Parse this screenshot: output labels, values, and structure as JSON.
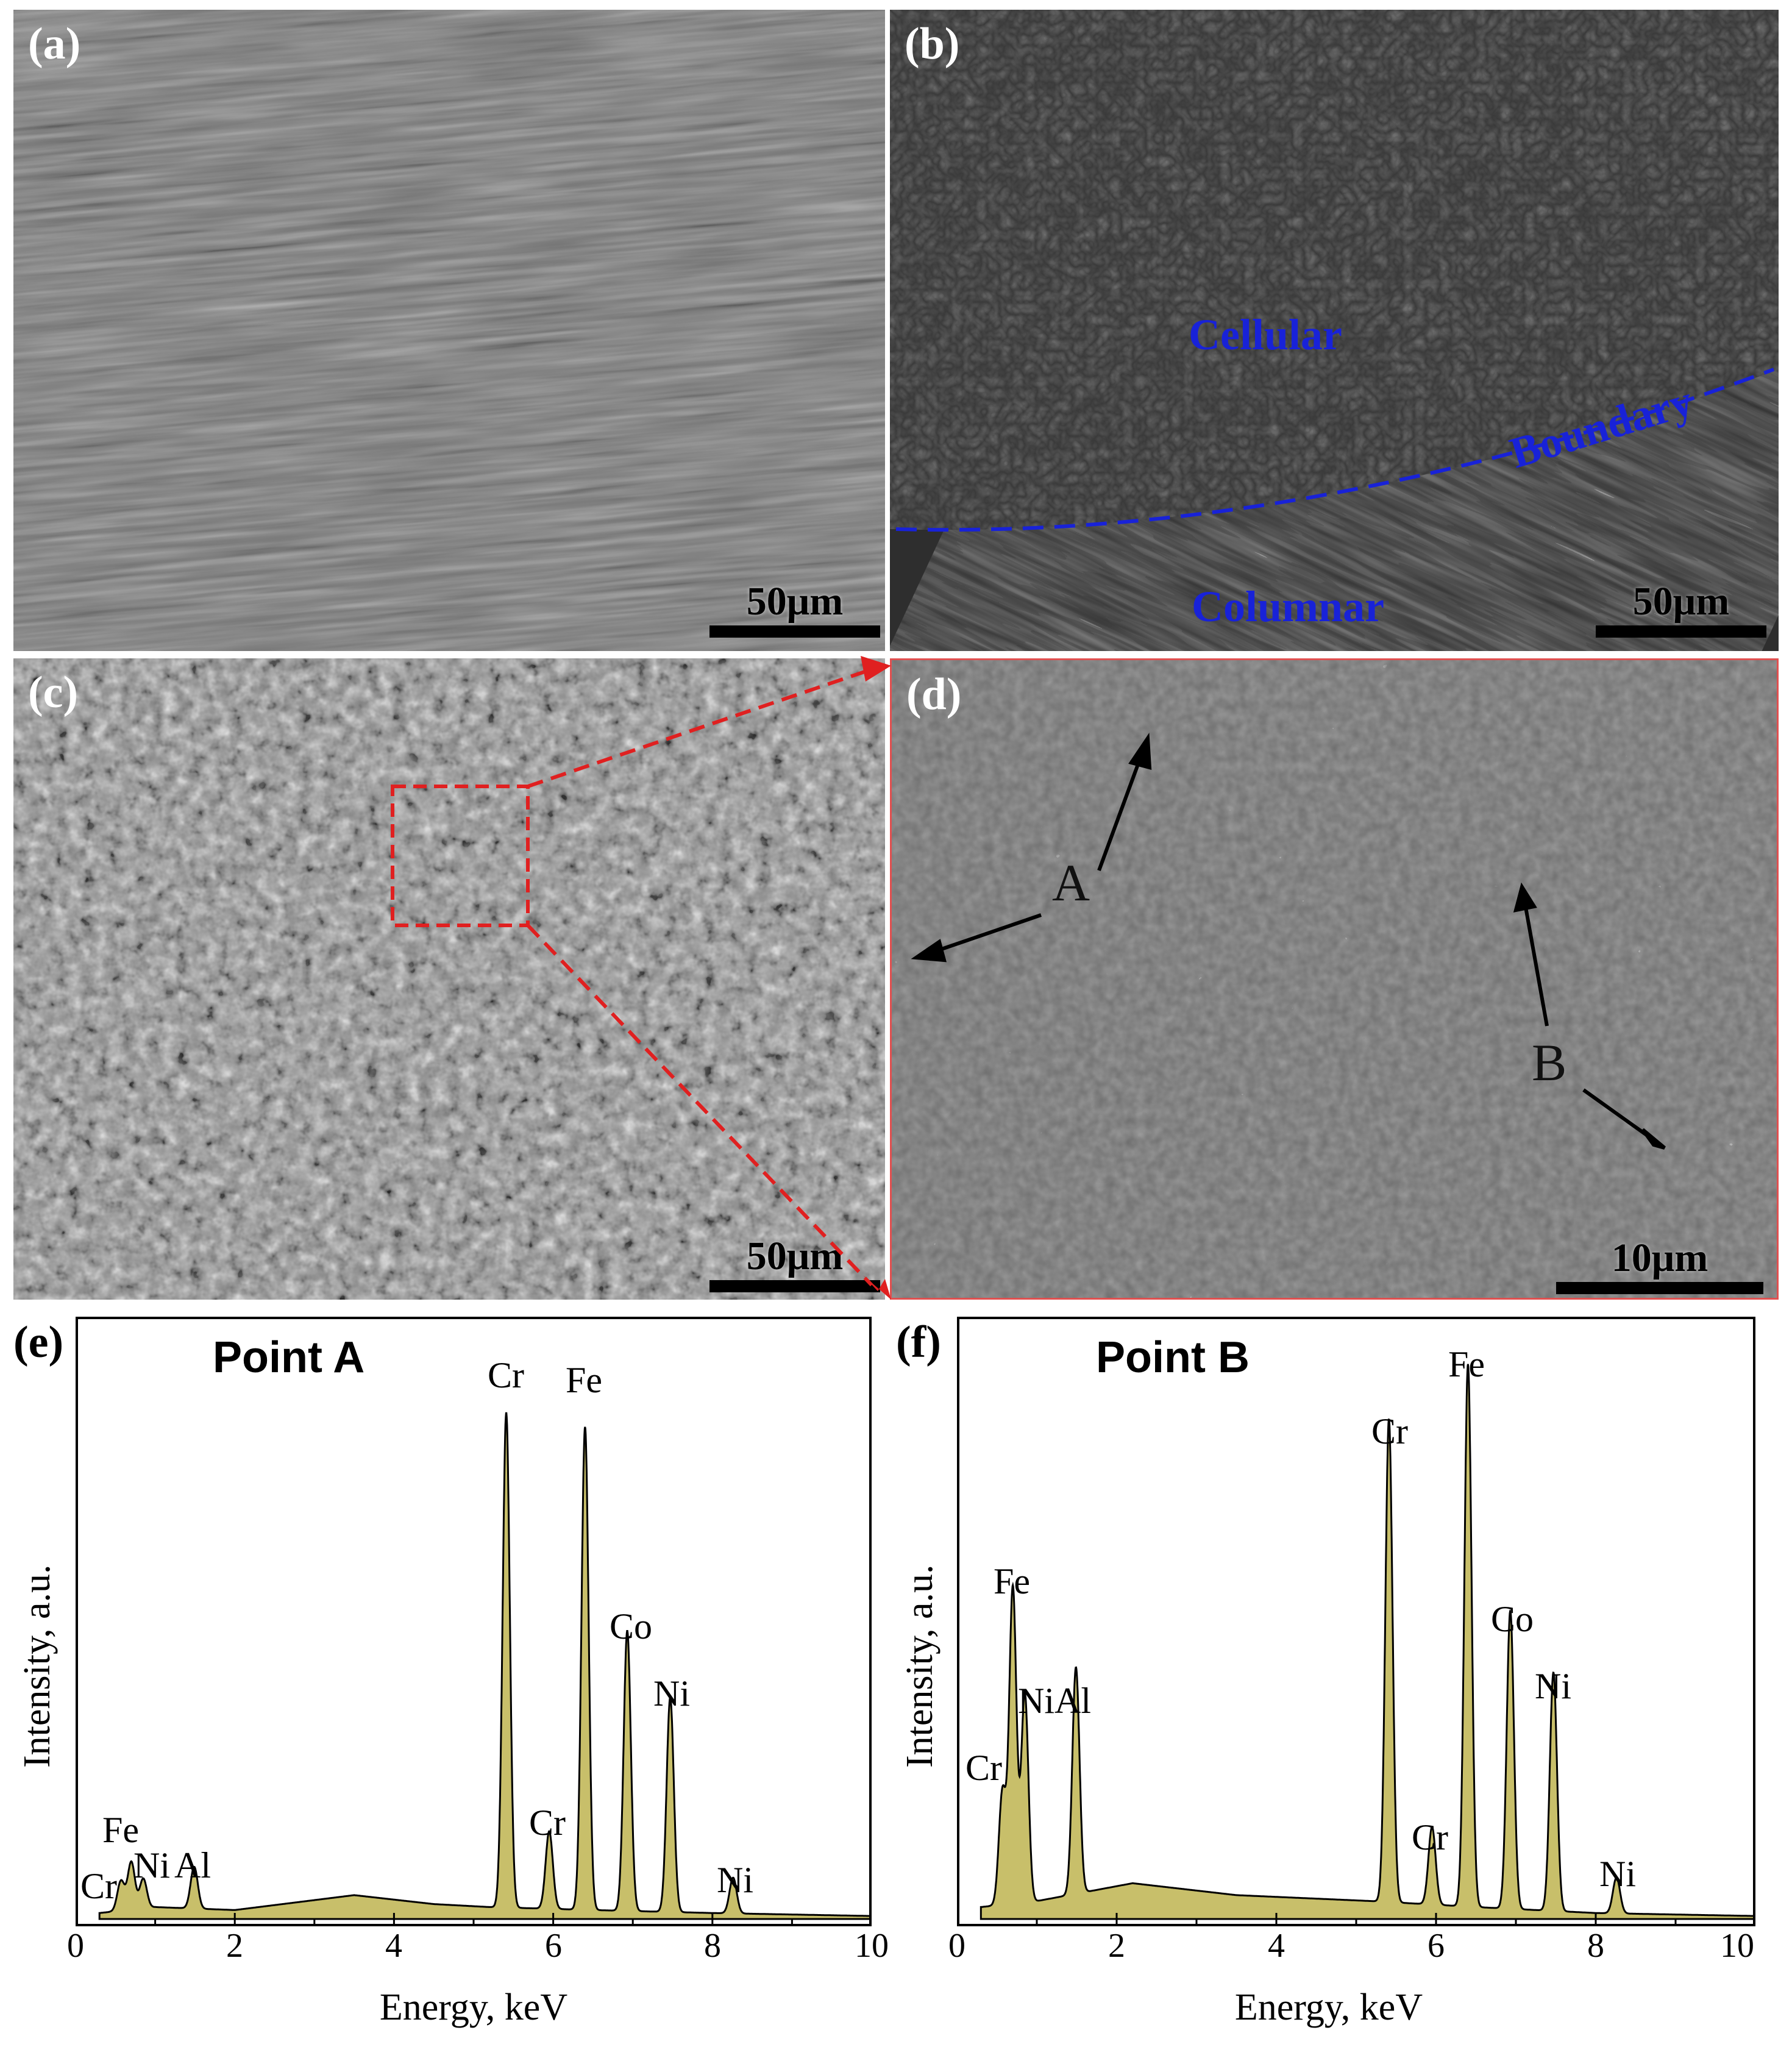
{
  "panels": {
    "a": {
      "label": "(a)",
      "scale": "50μm"
    },
    "b": {
      "label": "(b)",
      "scale": "50μm",
      "regions": {
        "cellular": "Cellular",
        "boundary": "Boundary",
        "columnar": "Columnar"
      }
    },
    "c": {
      "label": "(c)",
      "scale": "50μm"
    },
    "d": {
      "label": "(d)",
      "scale": "10μm",
      "point_a": "A",
      "point_b": "B"
    },
    "e": {
      "label": "(e)",
      "title": "Point A"
    },
    "f": {
      "label": "(f)",
      "title": "Point B"
    }
  },
  "colors": {
    "fill": "#c8bf6a",
    "boundary": "#1822d8",
    "zoom": "#e02020"
  },
  "chart_data": [
    {
      "type": "area",
      "title": "Point A",
      "xlabel": "Energy, keV",
      "ylabel": "Intensity, a.u.",
      "xlim": [
        0,
        10
      ],
      "ylim": [
        0,
        100
      ],
      "xticks": [
        "0",
        "2",
        "4",
        "6",
        "8",
        "10"
      ],
      "peaks": [
        {
          "label": "Cr",
          "energy": 0.57,
          "intensity": 5
        },
        {
          "label": "Fe",
          "energy": 0.7,
          "intensity": 8
        },
        {
          "label": "Ni",
          "energy": 0.85,
          "intensity": 5
        },
        {
          "label": "Al",
          "energy": 1.49,
          "intensity": 7
        },
        {
          "label": "Cr",
          "energy": 5.41,
          "intensity": 83
        },
        {
          "label": "Cr",
          "energy": 5.95,
          "intensity": 13
        },
        {
          "label": "Fe",
          "energy": 6.4,
          "intensity": 81
        },
        {
          "label": "Co",
          "energy": 6.93,
          "intensity": 47
        },
        {
          "label": "Ni",
          "energy": 7.47,
          "intensity": 36
        },
        {
          "label": "Ni",
          "energy": 8.26,
          "intensity": 6
        }
      ],
      "background": [
        [
          0.3,
          1
        ],
        [
          1.0,
          2
        ],
        [
          2.0,
          1.5
        ],
        [
          3.5,
          4
        ],
        [
          4.5,
          2.5
        ],
        [
          5.2,
          2
        ],
        [
          6.5,
          1.5
        ],
        [
          8.0,
          1
        ],
        [
          10.0,
          0.5
        ]
      ]
    },
    {
      "type": "area",
      "title": "Point B",
      "xlabel": "Energy, keV",
      "ylabel": "Intensity, a.u.",
      "xlim": [
        0,
        10
      ],
      "ylim": [
        0,
        100
      ],
      "xticks": [
        "0",
        "2",
        "4",
        "6",
        "8",
        "10"
      ],
      "peaks": [
        {
          "label": "Cr",
          "energy": 0.57,
          "intensity": 19
        },
        {
          "label": "Fe",
          "energy": 0.7,
          "intensity": 53
        },
        {
          "label": "Ni",
          "energy": 0.85,
          "intensity": 35
        },
        {
          "label": "Al",
          "energy": 1.49,
          "intensity": 38
        },
        {
          "label": "Cr",
          "energy": 5.41,
          "intensity": 81
        },
        {
          "label": "Cr",
          "energy": 5.95,
          "intensity": 13
        },
        {
          "label": "Fe",
          "energy": 6.4,
          "intensity": 91
        },
        {
          "label": "Co",
          "energy": 6.93,
          "intensity": 50
        },
        {
          "label": "Ni",
          "energy": 7.47,
          "intensity": 40
        },
        {
          "label": "Ni",
          "energy": 8.26,
          "intensity": 6
        }
      ],
      "background": [
        [
          0.3,
          2
        ],
        [
          1.0,
          3
        ],
        [
          2.2,
          6
        ],
        [
          3.5,
          4
        ],
        [
          5.2,
          3
        ],
        [
          6.5,
          2
        ],
        [
          8.0,
          1
        ],
        [
          10.0,
          0.5
        ]
      ]
    }
  ]
}
